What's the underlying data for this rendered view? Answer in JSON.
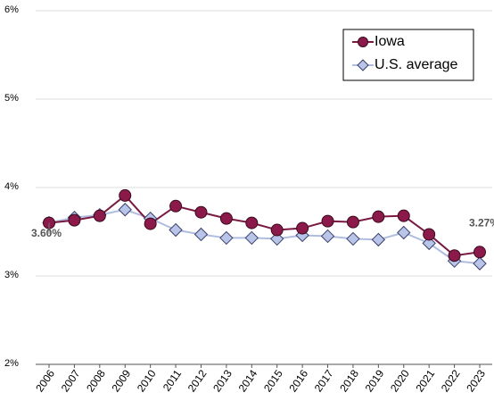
{
  "chart_data": {
    "type": "line",
    "categories": [
      "2006",
      "2007",
      "2008",
      "2009",
      "2010",
      "2011",
      "2012",
      "2013",
      "2014",
      "2015",
      "2016",
      "2017",
      "2018",
      "2019",
      "2020",
      "2021",
      "2022",
      "2023"
    ],
    "series": [
      {
        "name": "Iowa",
        "color": "#8b1a4a",
        "line_color": "#7a1a42",
        "marker": "circle",
        "values": [
          3.6,
          3.63,
          3.68,
          3.91,
          3.59,
          3.79,
          3.72,
          3.65,
          3.6,
          3.52,
          3.54,
          3.62,
          3.61,
          3.67,
          3.68,
          3.47,
          3.23,
          3.27
        ],
        "value_labels": [
          "3.60%",
          null,
          null,
          null,
          null,
          null,
          null,
          null,
          null,
          null,
          null,
          null,
          null,
          null,
          null,
          null,
          null,
          "3.27%"
        ]
      },
      {
        "name": "U.S. average",
        "color": "#b8c4e8",
        "line_color": "#b0bde0",
        "marker": "diamond",
        "values": [
          3.6,
          3.66,
          3.69,
          3.75,
          3.65,
          3.52,
          3.47,
          3.43,
          3.43,
          3.42,
          3.46,
          3.45,
          3.42,
          3.41,
          3.49,
          3.37,
          3.17,
          3.14
        ]
      }
    ],
    "ylim": [
      2,
      6
    ],
    "yticks": [
      {
        "value": 2,
        "label": "2%"
      },
      {
        "value": 3,
        "label": "3%"
      },
      {
        "value": 4,
        "label": "4%"
      },
      {
        "value": 5,
        "label": "5%"
      },
      {
        "value": 6,
        "label": "6%"
      }
    ],
    "grid": true,
    "legend": "top-right"
  }
}
